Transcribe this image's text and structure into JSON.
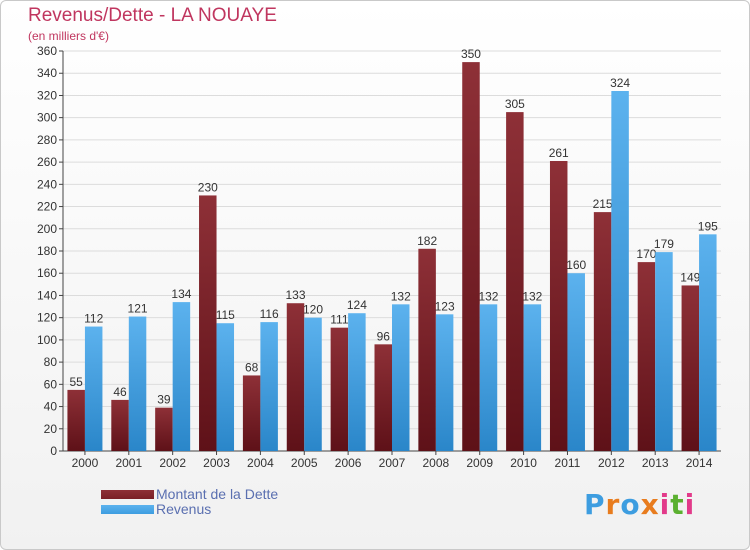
{
  "chart_data": {
    "type": "bar",
    "title": "Revenus/Dette - LA NOUAYE",
    "subtitle": "(en milliers d'€)",
    "categories": [
      "2000",
      "2001",
      "2002",
      "2003",
      "2004",
      "2005",
      "2006",
      "2007",
      "2008",
      "2009",
      "2010",
      "2011",
      "2012",
      "2013",
      "2014"
    ],
    "series": [
      {
        "name": "Montant de la Dette",
        "color": "#7a1f26",
        "values": [
          55,
          46,
          39,
          230,
          68,
          133,
          111,
          96,
          182,
          350,
          305,
          261,
          215,
          170,
          149
        ]
      },
      {
        "name": "Revenus",
        "color": "#3d9de0",
        "values": [
          112,
          121,
          134,
          115,
          116,
          120,
          124,
          132,
          123,
          132,
          132,
          160,
          324,
          179,
          195
        ]
      }
    ],
    "ylim": [
      0,
      360
    ],
    "yticks": [
      0,
      20,
      40,
      60,
      80,
      100,
      120,
      140,
      160,
      180,
      200,
      220,
      240,
      260,
      280,
      300,
      320,
      340,
      360
    ],
    "grid": true,
    "legend_position": "bottom-left"
  },
  "logo": {
    "text": "Proxiti",
    "colors": [
      "#3d9de0",
      "#e87c1e",
      "#3d9de0",
      "#e87c1e",
      "#e23a8a",
      "#5bb030",
      "#e23a8a"
    ]
  }
}
